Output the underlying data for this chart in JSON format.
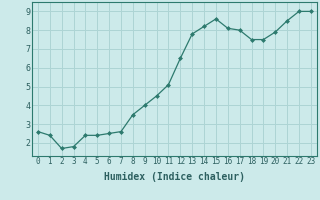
{
  "x": [
    0,
    1,
    2,
    3,
    4,
    5,
    6,
    7,
    8,
    9,
    10,
    11,
    12,
    13,
    14,
    15,
    16,
    17,
    18,
    19,
    20,
    21,
    22,
    23
  ],
  "y": [
    2.6,
    2.4,
    1.7,
    1.8,
    2.4,
    2.4,
    2.5,
    2.6,
    3.5,
    4.0,
    4.5,
    5.1,
    6.5,
    7.8,
    8.2,
    8.6,
    8.1,
    8.0,
    7.5,
    7.5,
    7.9,
    8.5,
    9.0,
    9.0
  ],
  "line_color": "#2d7a6e",
  "marker": "D",
  "marker_size": 2.0,
  "bg_color": "#cceaea",
  "grid_color": "#add4d4",
  "xlabel": "Humidex (Indice chaleur)",
  "ylabel": "",
  "title": "",
  "xlim": [
    -0.5,
    23.5
  ],
  "ylim": [
    1.3,
    9.5
  ],
  "yticks": [
    2,
    3,
    4,
    5,
    6,
    7,
    8,
    9
  ],
  "xticks": [
    0,
    1,
    2,
    3,
    4,
    5,
    6,
    7,
    8,
    9,
    10,
    11,
    12,
    13,
    14,
    15,
    16,
    17,
    18,
    19,
    20,
    21,
    22,
    23
  ],
  "tick_color": "#2d6060",
  "label_fontsize": 5.5,
  "ylabel_fontsize": 6.0,
  "xlabel_fontsize": 7.0
}
